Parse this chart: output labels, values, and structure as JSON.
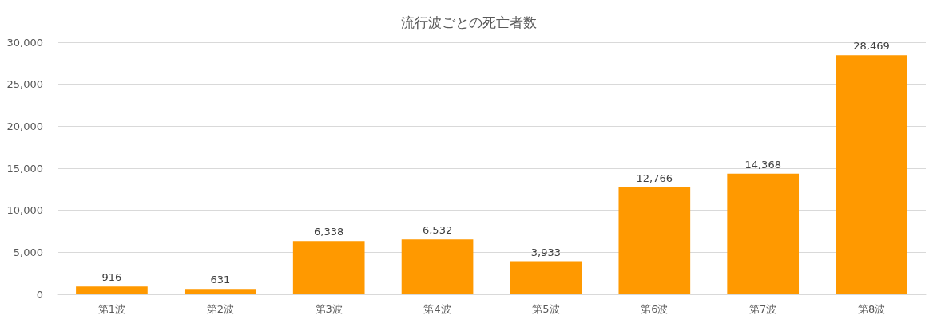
{
  "chart_data": {
    "type": "bar",
    "title": "流行波ごとの死亡者数",
    "categories": [
      "第1波",
      "第2波",
      "第3波",
      "第4波",
      "第5波",
      "第6波",
      "第7波",
      "第8波"
    ],
    "values": [
      916,
      631,
      6338,
      6532,
      3933,
      12766,
      14368,
      28469
    ],
    "value_labels": [
      "916",
      "631",
      "6,338",
      "6,532",
      "3,933",
      "12,766",
      "14,368",
      "28,469"
    ],
    "color": "#ff9900",
    "ylim": [
      0,
      30000
    ],
    "yticks": [
      {
        "value": 0,
        "label": "0"
      },
      {
        "value": 5000,
        "label": "5,000"
      },
      {
        "value": 10000,
        "label": "10,000"
      },
      {
        "value": 15000,
        "label": "15,000"
      },
      {
        "value": 20000,
        "label": "20,000"
      },
      {
        "value": 25000,
        "label": "25,000"
      },
      {
        "value": 30000,
        "label": "30,000"
      }
    ],
    "grid": "y"
  }
}
